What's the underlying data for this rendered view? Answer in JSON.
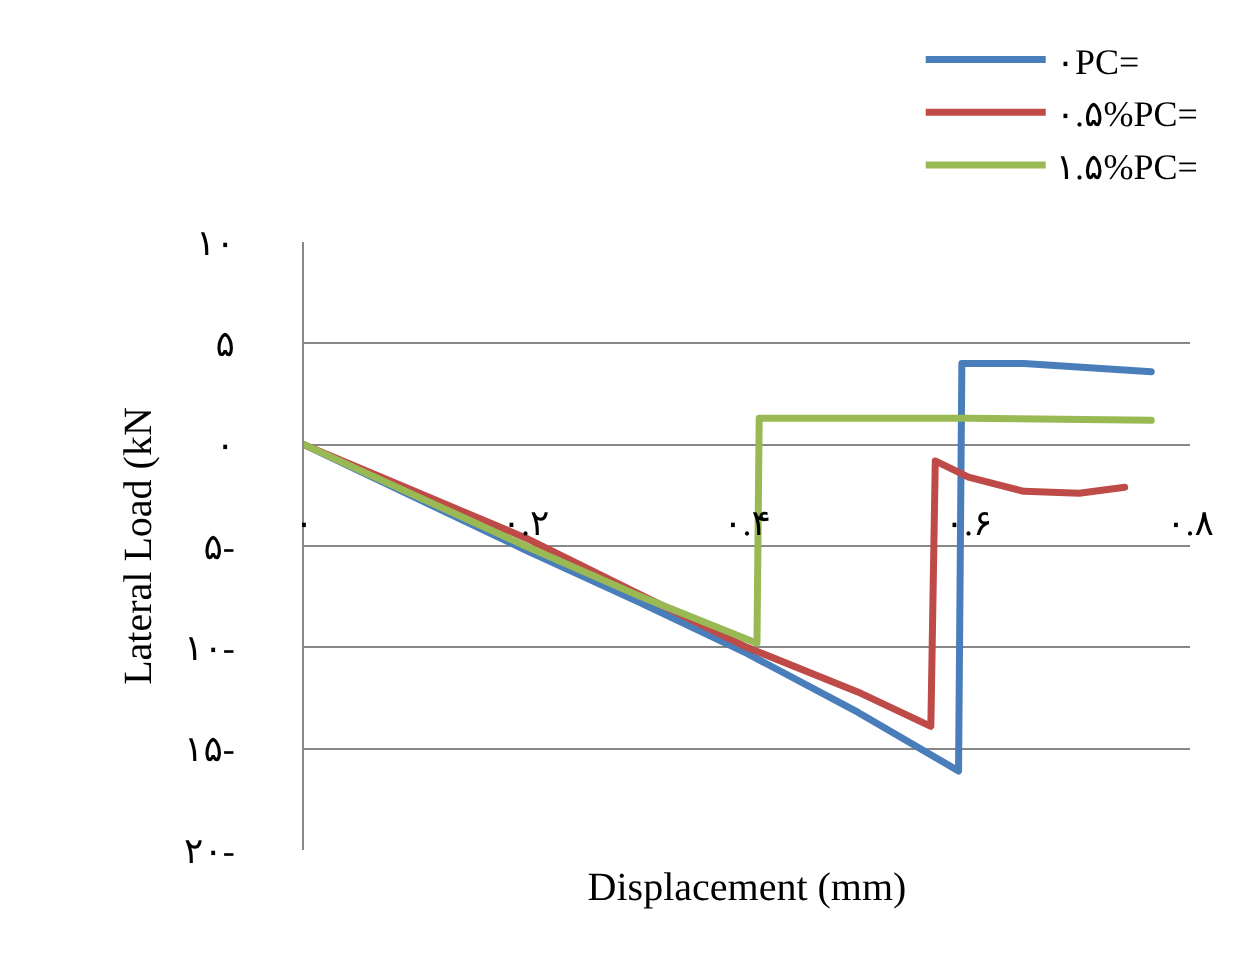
{
  "chart_data": {
    "type": "line",
    "xlabel": "Displacement (mm)",
    "ylabel": "Lateral Load (kN",
    "xlim": [
      0,
      0.8
    ],
    "xticks": [
      {
        "value": 0,
        "label": "۰"
      },
      {
        "value": 0.2,
        "label": "۰.۲"
      },
      {
        "value": 0.4,
        "label": "۰.۴"
      },
      {
        "value": 0.6,
        "label": "۰.۶"
      },
      {
        "value": 0.8,
        "label": "۰.۸"
      }
    ],
    "ylim": [
      -20,
      10
    ],
    "yticks": [
      {
        "value": 10,
        "label": "۱۰"
      },
      {
        "value": 5,
        "label": "۵"
      },
      {
        "value": 0,
        "label": "۰"
      },
      {
        "value": -5,
        "label": "۵-"
      },
      {
        "value": -10,
        "label": "۱۰-"
      },
      {
        "value": -15,
        "label": "۱۵-"
      },
      {
        "value": -20,
        "label": "۲۰-"
      }
    ],
    "grid": "y",
    "legend": "top right",
    "series": [
      {
        "name": "۰PC=",
        "color": "#4a7ebb",
        "x": [
          0,
          0.1,
          0.2,
          0.3,
          0.4,
          0.5,
          0.591,
          0.594,
          0.65,
          0.765
        ],
        "values": [
          0,
          -2.6,
          -5.2,
          -7.7,
          -10.3,
          -13.2,
          -16.1,
          4.0,
          4.0,
          3.6
        ]
      },
      {
        "name": "۰.۵%PC=",
        "color": "#be4b48",
        "x": [
          0,
          0.1,
          0.2,
          0.3,
          0.4,
          0.5,
          0.566,
          0.57,
          0.6,
          0.65,
          0.7,
          0.741
        ],
        "values": [
          0,
          -2.3,
          -4.6,
          -7.3,
          -10.0,
          -12.2,
          -13.9,
          -0.8,
          -1.6,
          -2.3,
          -2.4,
          -2.1
        ]
      },
      {
        "name": "۱.۵%PC=",
        "color": "#98b954",
        "x": [
          0,
          0.1,
          0.2,
          0.3,
          0.409,
          0.411,
          0.6,
          0.765
        ],
        "values": [
          0,
          -2.5,
          -5.0,
          -7.4,
          -9.8,
          1.3,
          1.3,
          1.2
        ]
      }
    ]
  }
}
